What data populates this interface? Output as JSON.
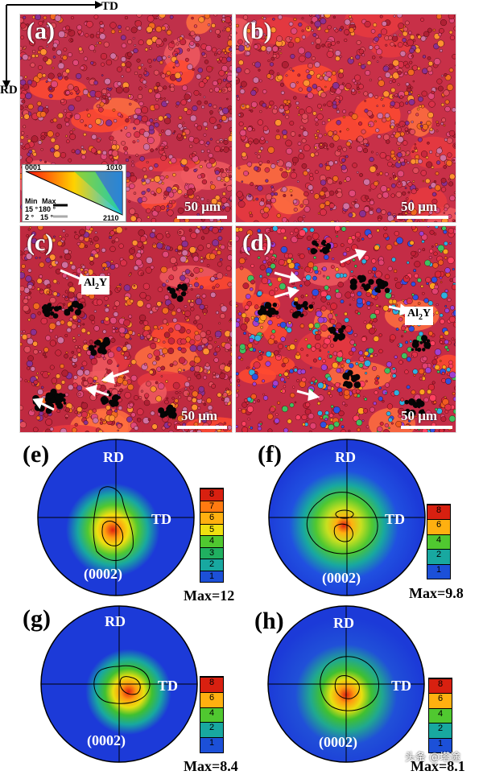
{
  "axes": {
    "td": "TD",
    "rd": "RD"
  },
  "panels": {
    "a": {
      "label": "(a)",
      "scale": "50 μm"
    },
    "b": {
      "label": "(b)",
      "scale": "50 μm"
    },
    "c": {
      "label": "(c)",
      "scale": "50 μm",
      "annotation": "Al",
      "annotation_sub": "2",
      "annotation_tail": "Y"
    },
    "d": {
      "label": "(d)",
      "scale": "50 μm",
      "annotation": "Al",
      "annotation_sub": "2",
      "annotation_tail": "Y"
    }
  },
  "legend": {
    "corner_top_left": "0001",
    "corner_top_right": "1010",
    "corner_bottom": "2110",
    "min_header": "Min",
    "max_header": "Max",
    "row1_min": "15 °",
    "row1_max": "180 °",
    "row2_min": "2 °",
    "row2_max": "15 °"
  },
  "pole_figures": {
    "e": {
      "label": "(e)",
      "rd": "RD",
      "td": "TD",
      "plane": "(0002)",
      "max": "Max=12",
      "scale": [
        "8",
        "7",
        "6",
        "5",
        "4",
        "3",
        "2",
        "1"
      ]
    },
    "f": {
      "label": "(f)",
      "rd": "RD",
      "td": "TD",
      "plane": "(0002)",
      "max": "Max=9.8",
      "scale": [
        "8",
        "6",
        "4",
        "2",
        "1"
      ]
    },
    "g": {
      "label": "(g)",
      "rd": "RD",
      "td": "TD",
      "plane": "(0002)",
      "max": "Max=8.4",
      "scale": [
        "8",
        "6",
        "4",
        "2",
        "1"
      ]
    },
    "h": {
      "label": "(h)",
      "rd": "RD",
      "td": "TD",
      "plane": "(0002)",
      "max": "Max=8.1",
      "scale": [
        "8",
        "6",
        "4",
        "2",
        "1"
      ]
    }
  },
  "colors": {
    "accent_red": "#d8283a",
    "pf_blue": "#1c3ad8"
  },
  "watermark": "头条 @塔途"
}
